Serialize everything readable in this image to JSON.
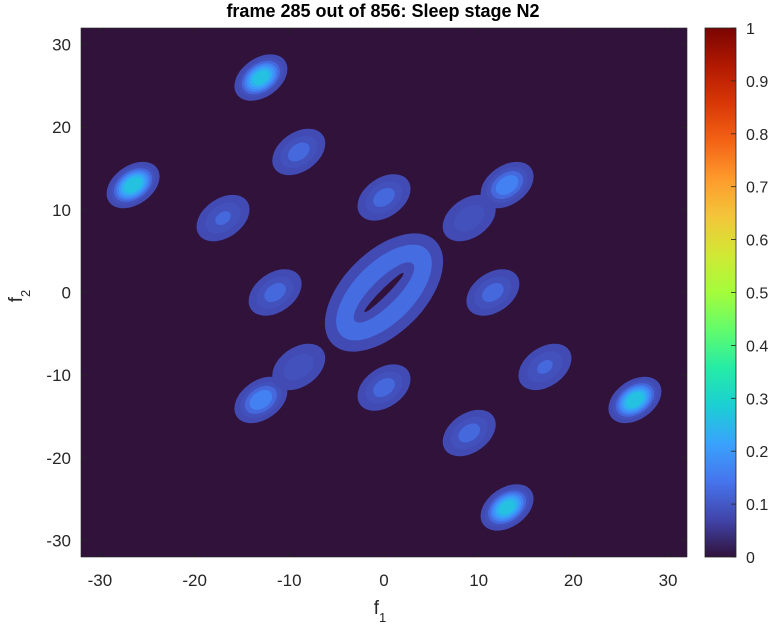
{
  "chart_data": {
    "type": "heatmap",
    "plot_kind": "filled-contour",
    "title": "frame 285 out of 856: Sleep stage N2",
    "xlabel": "f",
    "xlabel_sub": "1",
    "ylabel": "f",
    "ylabel_sub": "2",
    "xlim": [
      -32,
      32
    ],
    "ylim": [
      -32,
      32
    ],
    "xticks": [
      -30,
      -20,
      -10,
      0,
      10,
      20,
      30
    ],
    "yticks": [
      -30,
      -20,
      -10,
      0,
      10,
      20,
      30
    ],
    "colorbar": {
      "range": [
        0,
        1
      ],
      "ticks": [
        0,
        0.1,
        0.2,
        0.3,
        0.4,
        0.5,
        0.6,
        0.7,
        0.8,
        0.9,
        1
      ],
      "colormap": "turbo",
      "colors": [
        "#30123b",
        "#4145ab",
        "#4675ed",
        "#39a2fc",
        "#1bcfd4",
        "#24eca6",
        "#61fc6c",
        "#a4fc3b",
        "#d1e834",
        "#f3c63a",
        "#fe9b2d",
        "#f36315",
        "#d93806",
        "#b11901",
        "#7a0402"
      ]
    },
    "background_level": 0,
    "features": [
      {
        "kind": "peak",
        "x": -13,
        "y": 26,
        "value": 0.27
      },
      {
        "kind": "peak",
        "x": 13,
        "y": -26,
        "value": 0.27
      },
      {
        "kind": "peak",
        "x": -26.5,
        "y": 13,
        "value": 0.28
      },
      {
        "kind": "peak",
        "x": 26.5,
        "y": -13,
        "value": 0.28
      },
      {
        "kind": "peak",
        "x": 13,
        "y": 13,
        "value": 0.17
      },
      {
        "kind": "peak",
        "x": -13,
        "y": -13,
        "value": 0.17
      },
      {
        "kind": "peak",
        "x": -9,
        "y": 17,
        "value": 0.12
      },
      {
        "kind": "peak",
        "x": 9,
        "y": -17,
        "value": 0.12
      },
      {
        "kind": "peak",
        "x": -17,
        "y": 9,
        "value": 0.11
      },
      {
        "kind": "peak",
        "x": 17,
        "y": -9,
        "value": 0.11
      },
      {
        "kind": "peak",
        "x": 0,
        "y": 11.5,
        "value": 0.12
      },
      {
        "kind": "peak",
        "x": 0,
        "y": -11.5,
        "value": 0.12
      },
      {
        "kind": "peak",
        "x": -11.5,
        "y": 0,
        "value": 0.12
      },
      {
        "kind": "peak",
        "x": 11.5,
        "y": 0,
        "value": 0.12
      },
      {
        "kind": "peak",
        "x": 9,
        "y": 9,
        "value": 0.09
      },
      {
        "kind": "peak",
        "x": -9,
        "y": -9,
        "value": 0.09
      },
      {
        "kind": "ring",
        "x": 0,
        "y": 0,
        "radius": 5.5,
        "angle_deg": -45,
        "aspect": 0.5,
        "value": 0.13
      }
    ]
  }
}
